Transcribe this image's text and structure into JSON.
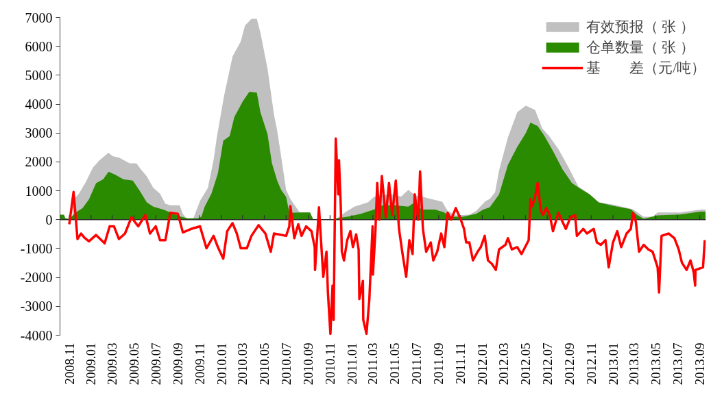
{
  "chart_data": {
    "type": "area",
    "xlim": [
      "2008-10-06",
      "2013-09-18"
    ],
    "ylim": [
      -4000,
      7000
    ],
    "yticks": [
      -4000,
      -3000,
      -2000,
      -1000,
      0,
      1000,
      2000,
      3000,
      4000,
      5000,
      6000,
      7000
    ],
    "xticks": [
      {
        "value": "2008-11-01",
        "label": "2008.11"
      },
      {
        "value": "2009-01-01",
        "label": "2009.01"
      },
      {
        "value": "2009-03-01",
        "label": "2009.03"
      },
      {
        "value": "2009-05-01",
        "label": "2009.05"
      },
      {
        "value": "2009-07-01",
        "label": "2009.07"
      },
      {
        "value": "2009-09-01",
        "label": "2009.09"
      },
      {
        "value": "2009-11-01",
        "label": "2009.11"
      },
      {
        "value": "2010-01-01",
        "label": "2010.01"
      },
      {
        "value": "2010-03-01",
        "label": "2010.03"
      },
      {
        "value": "2010-05-01",
        "label": "2010.05"
      },
      {
        "value": "2010-07-01",
        "label": "2010.07"
      },
      {
        "value": "2010-09-01",
        "label": "2010.09"
      },
      {
        "value": "2010-11-01",
        "label": "2010.11"
      },
      {
        "value": "2011-01-01",
        "label": "2011.01"
      },
      {
        "value": "2011-03-01",
        "label": "2011.03"
      },
      {
        "value": "2011-05-01",
        "label": "2011.05"
      },
      {
        "value": "2011-07-01",
        "label": "2011.07"
      },
      {
        "value": "2011-09-01",
        "label": "2011.09"
      },
      {
        "value": "2011-11-01",
        "label": "2011.11"
      },
      {
        "value": "2012-01-01",
        "label": "2012.01"
      },
      {
        "value": "2012-03-01",
        "label": "2012.03"
      },
      {
        "value": "2012-05-01",
        "label": "2012.05"
      },
      {
        "value": "2012-07-01",
        "label": "2012.07"
      },
      {
        "value": "2012-09-01",
        "label": "2012.09"
      },
      {
        "value": "2012-11-01",
        "label": "2012.11"
      },
      {
        "value": "2013-01-01",
        "label": "2013.01"
      },
      {
        "value": "2013-03-01",
        "label": "2013.03"
      },
      {
        "value": "2013-05-01",
        "label": "2013.05"
      },
      {
        "value": "2013-07-01",
        "label": "2013.07"
      },
      {
        "value": "2013-09-01",
        "label": "2013.09"
      }
    ],
    "legend": "top right",
    "series": [
      {
        "name": "有效预报（ 张 ）",
        "color": "#c0c0c0",
        "x": [
          "2008-11-10",
          "2008-11-28",
          "2008-12-17",
          "2009-01-06",
          "2009-01-24",
          "2009-02-19",
          "2009-03-02",
          "2009-03-20",
          "2009-04-19",
          "2009-05-08",
          "2009-05-20",
          "2009-06-06",
          "2009-06-24",
          "2009-07-13",
          "2009-07-28",
          "2009-08-11",
          "2009-09-06",
          "2009-09-15",
          "2009-09-28",
          "2009-10-13",
          "2009-11-02",
          "2009-11-24",
          "2009-12-10",
          "2009-12-19",
          "2010-01-08",
          "2010-02-01",
          "2010-02-24",
          "2010-03-08",
          "2010-03-26",
          "2010-04-10",
          "2010-04-20",
          "2010-05-10",
          "2010-05-28",
          "2010-06-06",
          "2010-06-17",
          "2010-07-01",
          "2010-07-13",
          "2010-08-08",
          "2010-09-06",
          "2010-09-15",
          "2010-11-11",
          "2010-11-20",
          "2010-12-19",
          "2011-01-08",
          "2011-02-15",
          "2011-03-04",
          "2011-03-22",
          "2011-04-24",
          "2011-05-19",
          "2011-06-08",
          "2011-06-26",
          "2011-07-15",
          "2011-08-10",
          "2011-09-11",
          "2011-09-26",
          "2011-10-19",
          "2011-11-26",
          "2011-12-15",
          "2012-01-10",
          "2012-01-22",
          "2012-02-06",
          "2012-02-17",
          "2012-03-13",
          "2012-04-08",
          "2012-05-02",
          "2012-05-28",
          "2012-06-17",
          "2012-07-06",
          "2012-08-01",
          "2012-08-28",
          "2012-09-26",
          "2012-10-24",
          "2012-11-22",
          "2013-01-01",
          "2013-02-26",
          "2013-03-28",
          "2013-04-22",
          "2013-05-06",
          "2013-07-08",
          "2013-09-04",
          "2013-09-17"
        ],
        "values": [
          650,
          900,
          1300,
          1800,
          2050,
          2320,
          2200,
          2150,
          1950,
          1950,
          1750,
          1500,
          1100,
          900,
          550,
          500,
          500,
          200,
          0,
          0,
          650,
          1100,
          2070,
          2850,
          4270,
          5650,
          6170,
          6720,
          6950,
          6950,
          6480,
          5220,
          3640,
          3080,
          2200,
          1030,
          720,
          250,
          250,
          0,
          0,
          50,
          300,
          450,
          600,
          790,
          850,
          880,
          800,
          1030,
          850,
          800,
          720,
          620,
          300,
          150,
          170,
          300,
          640,
          720,
          950,
          1700,
          2850,
          3720,
          3950,
          3800,
          3160,
          2900,
          2450,
          1850,
          1150,
          920,
          600,
          520,
          360,
          100,
          100,
          250,
          250,
          350,
          350
        ]
      },
      {
        "name": "仓单数量（ 张 ）",
        "color": "#2a8a00",
        "x": [
          "2008-10-06",
          "2008-10-17",
          "2008-10-21",
          "2008-11-01",
          "2008-11-19",
          "2008-12-08",
          "2008-12-26",
          "2009-01-15",
          "2009-02-04",
          "2009-02-19",
          "2009-03-11",
          "2009-04-01",
          "2009-04-28",
          "2009-05-17",
          "2009-06-06",
          "2009-06-24",
          "2009-07-22",
          "2009-08-20",
          "2009-09-10",
          "2009-09-28",
          "2009-10-26",
          "2009-11-06",
          "2009-11-15",
          "2009-12-04",
          "2009-12-22",
          "2010-01-06",
          "2010-01-24",
          "2010-02-06",
          "2010-03-02",
          "2010-03-20",
          "2010-04-10",
          "2010-04-20",
          "2010-05-10",
          "2010-05-22",
          "2010-06-06",
          "2010-06-17",
          "2010-07-01",
          "2010-07-10",
          "2010-08-08",
          "2010-09-06",
          "2010-09-15",
          "2010-11-11",
          "2010-11-20",
          "2010-12-19",
          "2011-01-26",
          "2011-03-04",
          "2011-03-28",
          "2011-05-01",
          "2011-06-08",
          "2011-06-26",
          "2011-07-15",
          "2011-08-22",
          "2011-09-17",
          "2011-10-01",
          "2011-11-08",
          "2011-12-15",
          "2012-01-04",
          "2012-01-22",
          "2012-02-17",
          "2012-03-13",
          "2012-04-08",
          "2012-05-02",
          "2012-05-15",
          "2012-06-04",
          "2012-06-22",
          "2012-07-17",
          "2012-08-13",
          "2012-09-08",
          "2012-10-02",
          "2012-10-28",
          "2012-11-22",
          "2013-01-01",
          "2013-02-20",
          "2013-03-10",
          "2013-03-28",
          "2013-05-06",
          "2013-07-08",
          "2013-09-04",
          "2013-09-17"
        ],
        "values": [
          170,
          170,
          50,
          30,
          250,
          400,
          700,
          1260,
          1400,
          1660,
          1550,
          1400,
          1350,
          1000,
          600,
          450,
          350,
          200,
          100,
          50,
          50,
          100,
          450,
          900,
          1600,
          2730,
          2890,
          3550,
          4100,
          4430,
          4400,
          3720,
          2960,
          1970,
          1350,
          1030,
          790,
          240,
          250,
          250,
          0,
          0,
          50,
          100,
          200,
          350,
          500,
          500,
          450,
          600,
          350,
          350,
          250,
          100,
          100,
          200,
          350,
          430,
          870,
          1900,
          2520,
          3000,
          3360,
          3240,
          2920,
          2380,
          1740,
          1270,
          1070,
          870,
          600,
          480,
          360,
          160,
          30,
          150,
          180,
          280,
          280
        ]
      },
      {
        "name": "基　　差（元/吨）",
        "type": "line",
        "color": "#ff0000",
        "x": [
          "2008-11-01",
          "2008-11-13",
          "2008-11-19",
          "2008-11-24",
          "2008-12-04",
          "2008-12-13",
          "2008-12-26",
          "2009-01-15",
          "2009-02-08",
          "2009-02-22",
          "2009-03-06",
          "2009-03-20",
          "2009-04-06",
          "2009-04-24",
          "2009-05-13",
          "2009-06-02",
          "2009-06-15",
          "2009-07-01",
          "2009-07-13",
          "2009-07-28",
          "2009-08-11",
          "2009-09-01",
          "2009-09-15",
          "2009-10-08",
          "2009-11-02",
          "2009-11-20",
          "2009-12-10",
          "2009-12-22",
          "2010-01-06",
          "2010-01-17",
          "2010-02-01",
          "2010-02-13",
          "2010-02-24",
          "2010-03-13",
          "2010-03-26",
          "2010-04-15",
          "2010-05-04",
          "2010-05-19",
          "2010-05-28",
          "2010-07-01",
          "2010-07-10",
          "2010-07-13",
          "2010-07-24",
          "2010-08-04",
          "2010-08-13",
          "2010-08-26",
          "2010-09-10",
          "2010-09-19",
          "2010-09-20",
          "2010-10-01",
          "2010-10-13",
          "2010-10-22",
          "2010-10-26",
          "2010-11-02",
          "2010-11-08",
          "2010-11-11",
          "2010-11-17",
          "2010-11-24",
          "2010-11-26",
          "2010-12-01",
          "2010-12-04",
          "2010-12-10",
          "2010-12-19",
          "2010-12-28",
          "2011-01-04",
          "2011-01-13",
          "2011-01-20",
          "2011-01-22",
          "2011-02-01",
          "2011-02-02",
          "2011-02-11",
          "2011-02-19",
          "2011-02-28",
          "2011-03-01",
          "2011-03-08",
          "2011-03-13",
          "2011-03-19",
          "2011-03-26",
          "2011-04-06",
          "2011-04-15",
          "2011-04-24",
          "2011-05-04",
          "2011-05-13",
          "2011-05-22",
          "2011-06-02",
          "2011-06-11",
          "2011-06-20",
          "2011-06-26",
          "2011-07-06",
          "2011-07-11",
          "2011-07-19",
          "2011-07-28",
          "2011-08-10",
          "2011-08-17",
          "2011-08-28",
          "2011-09-08",
          "2011-09-17",
          "2011-09-26",
          "2011-10-06",
          "2011-10-19",
          "2011-11-02",
          "2011-11-11",
          "2011-11-17",
          "2011-11-26",
          "2011-12-06",
          "2011-12-19",
          "2011-12-28",
          "2012-01-08",
          "2012-01-17",
          "2012-01-28",
          "2012-02-08",
          "2012-02-17",
          "2012-03-06",
          "2012-03-13",
          "2012-03-24",
          "2012-04-08",
          "2012-04-20",
          "2012-05-10",
          "2012-05-15",
          "2012-05-20",
          "2012-05-28",
          "2012-06-04",
          "2012-06-13",
          "2012-06-19",
          "2012-06-28",
          "2012-07-08",
          "2012-07-17",
          "2012-08-01",
          "2012-08-10",
          "2012-08-22",
          "2012-09-04",
          "2012-09-17",
          "2012-09-22",
          "2012-10-10",
          "2012-10-20",
          "2012-11-08",
          "2012-11-17",
          "2012-11-28",
          "2012-12-11",
          "2012-12-20",
          "2013-01-01",
          "2013-01-13",
          "2013-01-24",
          "2013-02-08",
          "2013-02-20",
          "2013-02-26",
          "2013-03-06",
          "2013-03-15",
          "2013-03-28",
          "2013-04-10",
          "2013-04-22",
          "2013-05-06",
          "2013-05-10",
          "2013-05-17",
          "2013-06-06",
          "2013-06-22",
          "2013-07-04",
          "2013-07-13",
          "2013-07-26",
          "2013-08-06",
          "2013-08-15",
          "2013-08-19",
          "2013-08-20",
          "2013-09-10",
          "2013-09-15"
        ],
        "values": [
          -160,
          960,
          80,
          -670,
          -480,
          -620,
          -750,
          -530,
          -820,
          -230,
          -230,
          -670,
          -480,
          80,
          -230,
          160,
          -480,
          -230,
          -710,
          -710,
          240,
          200,
          -440,
          -320,
          -230,
          -990,
          -560,
          -950,
          -1350,
          -400,
          -120,
          -480,
          -990,
          -990,
          -560,
          -190,
          -480,
          -1110,
          -480,
          -560,
          -230,
          470,
          -640,
          -160,
          -560,
          -230,
          -400,
          -950,
          -1740,
          430,
          -1980,
          -1110,
          -2520,
          -3950,
          -2280,
          -3470,
          2810,
          880,
          2060,
          480,
          -1110,
          -1410,
          -710,
          -400,
          -950,
          -510,
          -1030,
          -2750,
          -2120,
          -3470,
          -3950,
          -2750,
          -230,
          -1900,
          -400,
          1270,
          0,
          1510,
          80,
          1270,
          160,
          1350,
          -320,
          -1110,
          -1980,
          -710,
          -1190,
          880,
          0,
          1670,
          -320,
          -1110,
          -790,
          -1410,
          -1110,
          -480,
          -950,
          240,
          0,
          400,
          0,
          -320,
          -790,
          -790,
          -1410,
          -1110,
          -950,
          -560,
          -1410,
          -1530,
          -1740,
          -1030,
          -870,
          -640,
          -1030,
          -950,
          -1190,
          -710,
          720,
          470,
          790,
          1270,
          320,
          160,
          400,
          160,
          -400,
          240,
          0,
          -320,
          80,
          160,
          -560,
          -320,
          -480,
          -320,
          -790,
          -870,
          -710,
          -1650,
          -790,
          -400,
          -950,
          -480,
          -320,
          240,
          -70,
          -1110,
          -870,
          -1030,
          -1110,
          -1650,
          -2520,
          -560,
          -480,
          -640,
          -1030,
          -1490,
          -1740,
          -1410,
          -1820,
          -2280,
          -1740,
          -1650,
          -710
        ]
      }
    ]
  }
}
